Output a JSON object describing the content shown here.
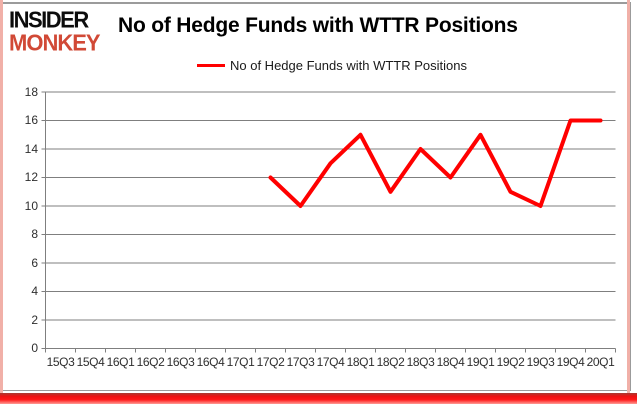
{
  "brand": {
    "line1": "INSIDER",
    "line2": "MONKEY"
  },
  "header": {
    "title": "No of Hedge Funds with WTTR Positions"
  },
  "legend": {
    "label": "No of Hedge Funds with WTTR Positions"
  },
  "chart_data": {
    "type": "line",
    "title": "No of Hedge Funds with WTTR Positions",
    "categories": [
      "15Q3",
      "15Q4",
      "16Q1",
      "16Q2",
      "16Q3",
      "16Q4",
      "17Q1",
      "17Q2",
      "17Q3",
      "17Q4",
      "18Q1",
      "18Q2",
      "18Q3",
      "18Q4",
      "19Q1",
      "19Q2",
      "19Q3",
      "19Q4",
      "20Q1"
    ],
    "series": [
      {
        "name": "No of Hedge Funds with WTTR Positions",
        "color": "#ff0000",
        "values": [
          null,
          null,
          null,
          null,
          null,
          null,
          null,
          12,
          10,
          13,
          15,
          11,
          14,
          12,
          15,
          11,
          10,
          16,
          16
        ]
      }
    ],
    "xlabel": "",
    "ylabel": "",
    "ylim": [
      0,
      18
    ],
    "yticks": [
      0,
      2,
      4,
      6,
      8,
      10,
      12,
      14,
      16,
      18
    ],
    "grid": true,
    "legend_position": "top-center"
  },
  "colors": {
    "series_red": "#ff0000",
    "logo_red": "#d14936",
    "gridline_gray": "#7f7f7f",
    "frame_gray": "#9b9b9b",
    "edge_pink": "#f1b0a8",
    "bottom_bar_red": "#ff1616"
  }
}
